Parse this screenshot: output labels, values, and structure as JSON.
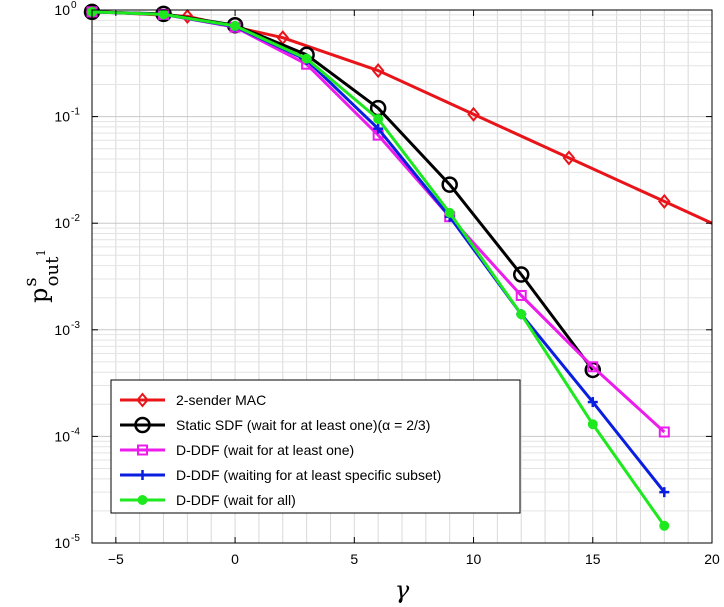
{
  "chart_data": {
    "type": "line",
    "xlabel": "γ",
    "ylabel": {
      "base": "p",
      "sup": "s",
      "sub_main": "out",
      "sub_index": "1"
    },
    "xlim": [
      -6,
      20
    ],
    "ylim": [
      1e-05,
      1
    ],
    "y_scale": "log",
    "grid": true,
    "minor_grid": true,
    "legend_position": "bottom-left",
    "x_ticks": [
      -5,
      0,
      5,
      10,
      15,
      20
    ],
    "y_ticks": [
      {
        "value": 1e-05,
        "base": "10",
        "exp": "-5"
      },
      {
        "value": 0.0001,
        "base": "10",
        "exp": "-4"
      },
      {
        "value": 0.001,
        "base": "10",
        "exp": "-3"
      },
      {
        "value": 0.01,
        "base": "10",
        "exp": "-2"
      },
      {
        "value": 0.1,
        "base": "10",
        "exp": "-1"
      },
      {
        "value": 1,
        "base": "10",
        "exp": "0"
      }
    ],
    "series": [
      {
        "name": "2-sender MAC",
        "color": "#e8141a",
        "marker": "diamond",
        "x": [
          -6,
          -2,
          2,
          6,
          10,
          14,
          18,
          20
        ],
        "y": [
          0.97,
          0.87,
          0.55,
          0.27,
          0.105,
          0.041,
          0.016,
          0.01
        ],
        "markers": [
          true,
          true,
          true,
          true,
          true,
          true,
          true,
          false
        ]
      },
      {
        "name": "Static SDF (wait for at least one)(α = 2/3)",
        "color": "#000000",
        "marker": "circle",
        "x": [
          -6,
          -3,
          0,
          3,
          6,
          9,
          12,
          15
        ],
        "y": [
          0.96,
          0.92,
          0.72,
          0.38,
          0.12,
          0.023,
          0.0033,
          0.00042
        ],
        "markers": [
          true,
          true,
          true,
          true,
          true,
          true,
          true,
          true
        ]
      },
      {
        "name": "D-DDF (wait for at least one)",
        "color": "#ec1cec",
        "marker": "square",
        "x": [
          -6,
          -3,
          0,
          3,
          6,
          9,
          12,
          15,
          18
        ],
        "y": [
          0.96,
          0.91,
          0.69,
          0.31,
          0.067,
          0.0115,
          0.0021,
          0.00045,
          0.00011
        ],
        "markers": [
          true,
          true,
          true,
          true,
          true,
          true,
          true,
          true,
          true
        ]
      },
      {
        "name": "D-DDF (waiting for at least specific subset)",
        "color": "#0a1ee0",
        "marker": "plus",
        "x": [
          -6,
          -3,
          0,
          3,
          6,
          9,
          12,
          15,
          18
        ],
        "y": [
          0.96,
          0.91,
          0.7,
          0.34,
          0.077,
          0.0115,
          0.0014,
          0.00021,
          3e-05
        ],
        "markers": [
          true,
          true,
          true,
          true,
          true,
          true,
          true,
          true,
          true
        ]
      },
      {
        "name": "D-DDF (wait for all)",
        "color": "#1ee81e",
        "marker": "dot",
        "x": [
          -6,
          -3,
          0,
          3,
          6,
          9,
          12,
          15,
          18
        ],
        "y": [
          0.96,
          0.91,
          0.71,
          0.35,
          0.095,
          0.0125,
          0.0014,
          0.00013,
          1.45e-05
        ],
        "markers": [
          true,
          true,
          true,
          true,
          true,
          true,
          true,
          true,
          true
        ]
      }
    ]
  }
}
